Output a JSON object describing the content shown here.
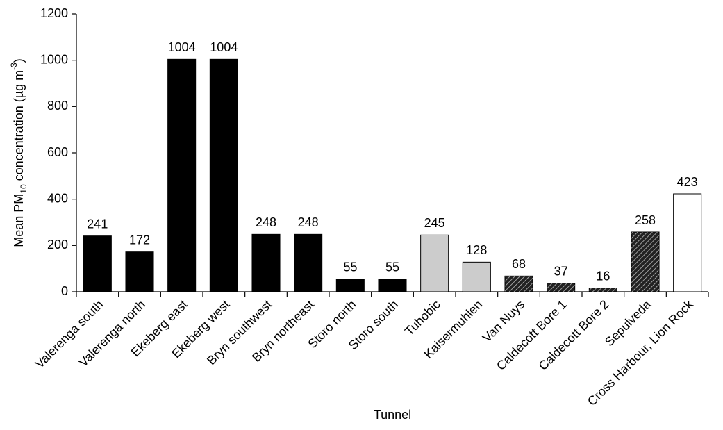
{
  "chart_data": {
    "type": "bar",
    "x_label": "Tunnel",
    "y_label": [
      "Mean PM",
      "10",
      " concentration (µg m",
      "-3",
      ")"
    ],
    "categories": [
      "Valerenga south",
      "Valerenga north",
      "Ekeberg east",
      "Ekeberg west",
      "Bryn southwest",
      "Bryn northeast",
      "Storo north",
      "Storo south",
      "Tuhobic",
      "Kaisermuhlen",
      "Van Nuys",
      "Caldecott Bore 1",
      "Caldecott Bore 2",
      "Sepulveda",
      "Cross Harbour, Lion Rock"
    ],
    "values": [
      241,
      172,
      1004,
      1004,
      248,
      248,
      55,
      55,
      245,
      128,
      68,
      37,
      16,
      258,
      423
    ],
    "colors": [
      "#000000",
      "#000000",
      "#000000",
      "#000000",
      "#000000",
      "#000000",
      "#000000",
      "#000000",
      "#cccccc",
      "#cccccc",
      "#222222",
      "#222222",
      "#222222",
      "#222222",
      "#ffffff"
    ],
    "hatch": [
      false,
      false,
      false,
      false,
      false,
      false,
      false,
      false,
      false,
      false,
      true,
      true,
      true,
      true,
      false
    ],
    "ylim": [
      0,
      1200
    ],
    "yticks": [
      0,
      200,
      400,
      600,
      800,
      1000,
      1200
    ],
    "grid": false
  }
}
